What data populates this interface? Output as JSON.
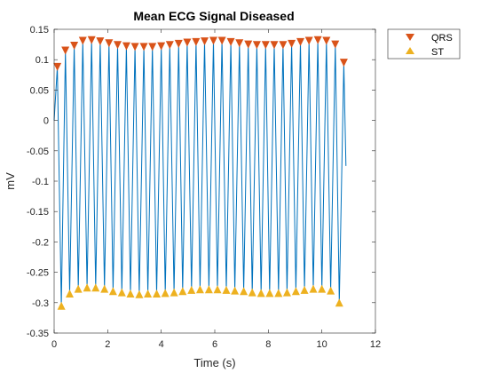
{
  "chart_data": {
    "type": "line",
    "title": "Mean ECG Signal Diseased",
    "xlabel": "Time (s)",
    "ylabel": "mV",
    "xlim": [
      0,
      12
    ],
    "ylim": [
      -0.35,
      0.15
    ],
    "xticks": [
      0,
      2,
      4,
      6,
      8,
      10,
      12
    ],
    "yticks": [
      -0.35,
      -0.3,
      -0.25,
      -0.2,
      -0.15,
      -0.1,
      -0.05,
      0,
      0.05,
      0.1,
      0.15
    ],
    "ytick_labels": [
      "-0.35",
      "-0.3",
      "-0.25",
      "-0.2",
      "-0.15",
      "-0.1",
      "-0.05",
      "0",
      "0.05",
      "0.1",
      "0.15"
    ],
    "xtick_labels": [
      "0",
      "2",
      "4",
      "6",
      "8",
      "10",
      "12"
    ],
    "grid": false,
    "legend_position": "outside-top-right",
    "signal": {
      "start": 0,
      "end": 10.9,
      "end_value": -0.075,
      "color": "#0072BD"
    },
    "series": [
      {
        "name": "QRS",
        "marker": "triangle-down",
        "color": "#D95319",
        "x": [
          0.12,
          0.42,
          0.75,
          1.07,
          1.4,
          1.72,
          2.05,
          2.37,
          2.7,
          3.02,
          3.35,
          3.67,
          4.0,
          4.32,
          4.65,
          4.97,
          5.3,
          5.62,
          5.95,
          6.27,
          6.6,
          6.92,
          7.25,
          7.57,
          7.9,
          8.22,
          8.55,
          8.87,
          9.2,
          9.52,
          9.85,
          10.17,
          10.5,
          10.82
        ],
        "y": [
          0.088,
          0.115,
          0.123,
          0.131,
          0.132,
          0.13,
          0.127,
          0.124,
          0.122,
          0.121,
          0.121,
          0.121,
          0.122,
          0.124,
          0.126,
          0.128,
          0.129,
          0.13,
          0.131,
          0.131,
          0.129,
          0.127,
          0.125,
          0.124,
          0.124,
          0.124,
          0.124,
          0.126,
          0.129,
          0.131,
          0.132,
          0.131,
          0.125,
          0.095
        ]
      },
      {
        "name": "ST",
        "marker": "triangle-up",
        "color": "#EDB120",
        "x": [
          0.27,
          0.58,
          0.9,
          1.23,
          1.55,
          1.88,
          2.2,
          2.53,
          2.85,
          3.18,
          3.5,
          3.83,
          4.15,
          4.48,
          4.8,
          5.13,
          5.45,
          5.78,
          6.1,
          6.43,
          6.75,
          7.08,
          7.4,
          7.73,
          8.05,
          8.38,
          8.7,
          9.03,
          9.35,
          9.68,
          10.0,
          10.33,
          10.65
        ],
        "y": [
          -0.305,
          -0.285,
          -0.277,
          -0.275,
          -0.275,
          -0.277,
          -0.281,
          -0.283,
          -0.285,
          -0.286,
          -0.285,
          -0.285,
          -0.284,
          -0.283,
          -0.281,
          -0.279,
          -0.278,
          -0.278,
          -0.278,
          -0.279,
          -0.28,
          -0.281,
          -0.283,
          -0.284,
          -0.284,
          -0.284,
          -0.283,
          -0.281,
          -0.279,
          -0.277,
          -0.277,
          -0.28,
          -0.3
        ]
      }
    ]
  }
}
